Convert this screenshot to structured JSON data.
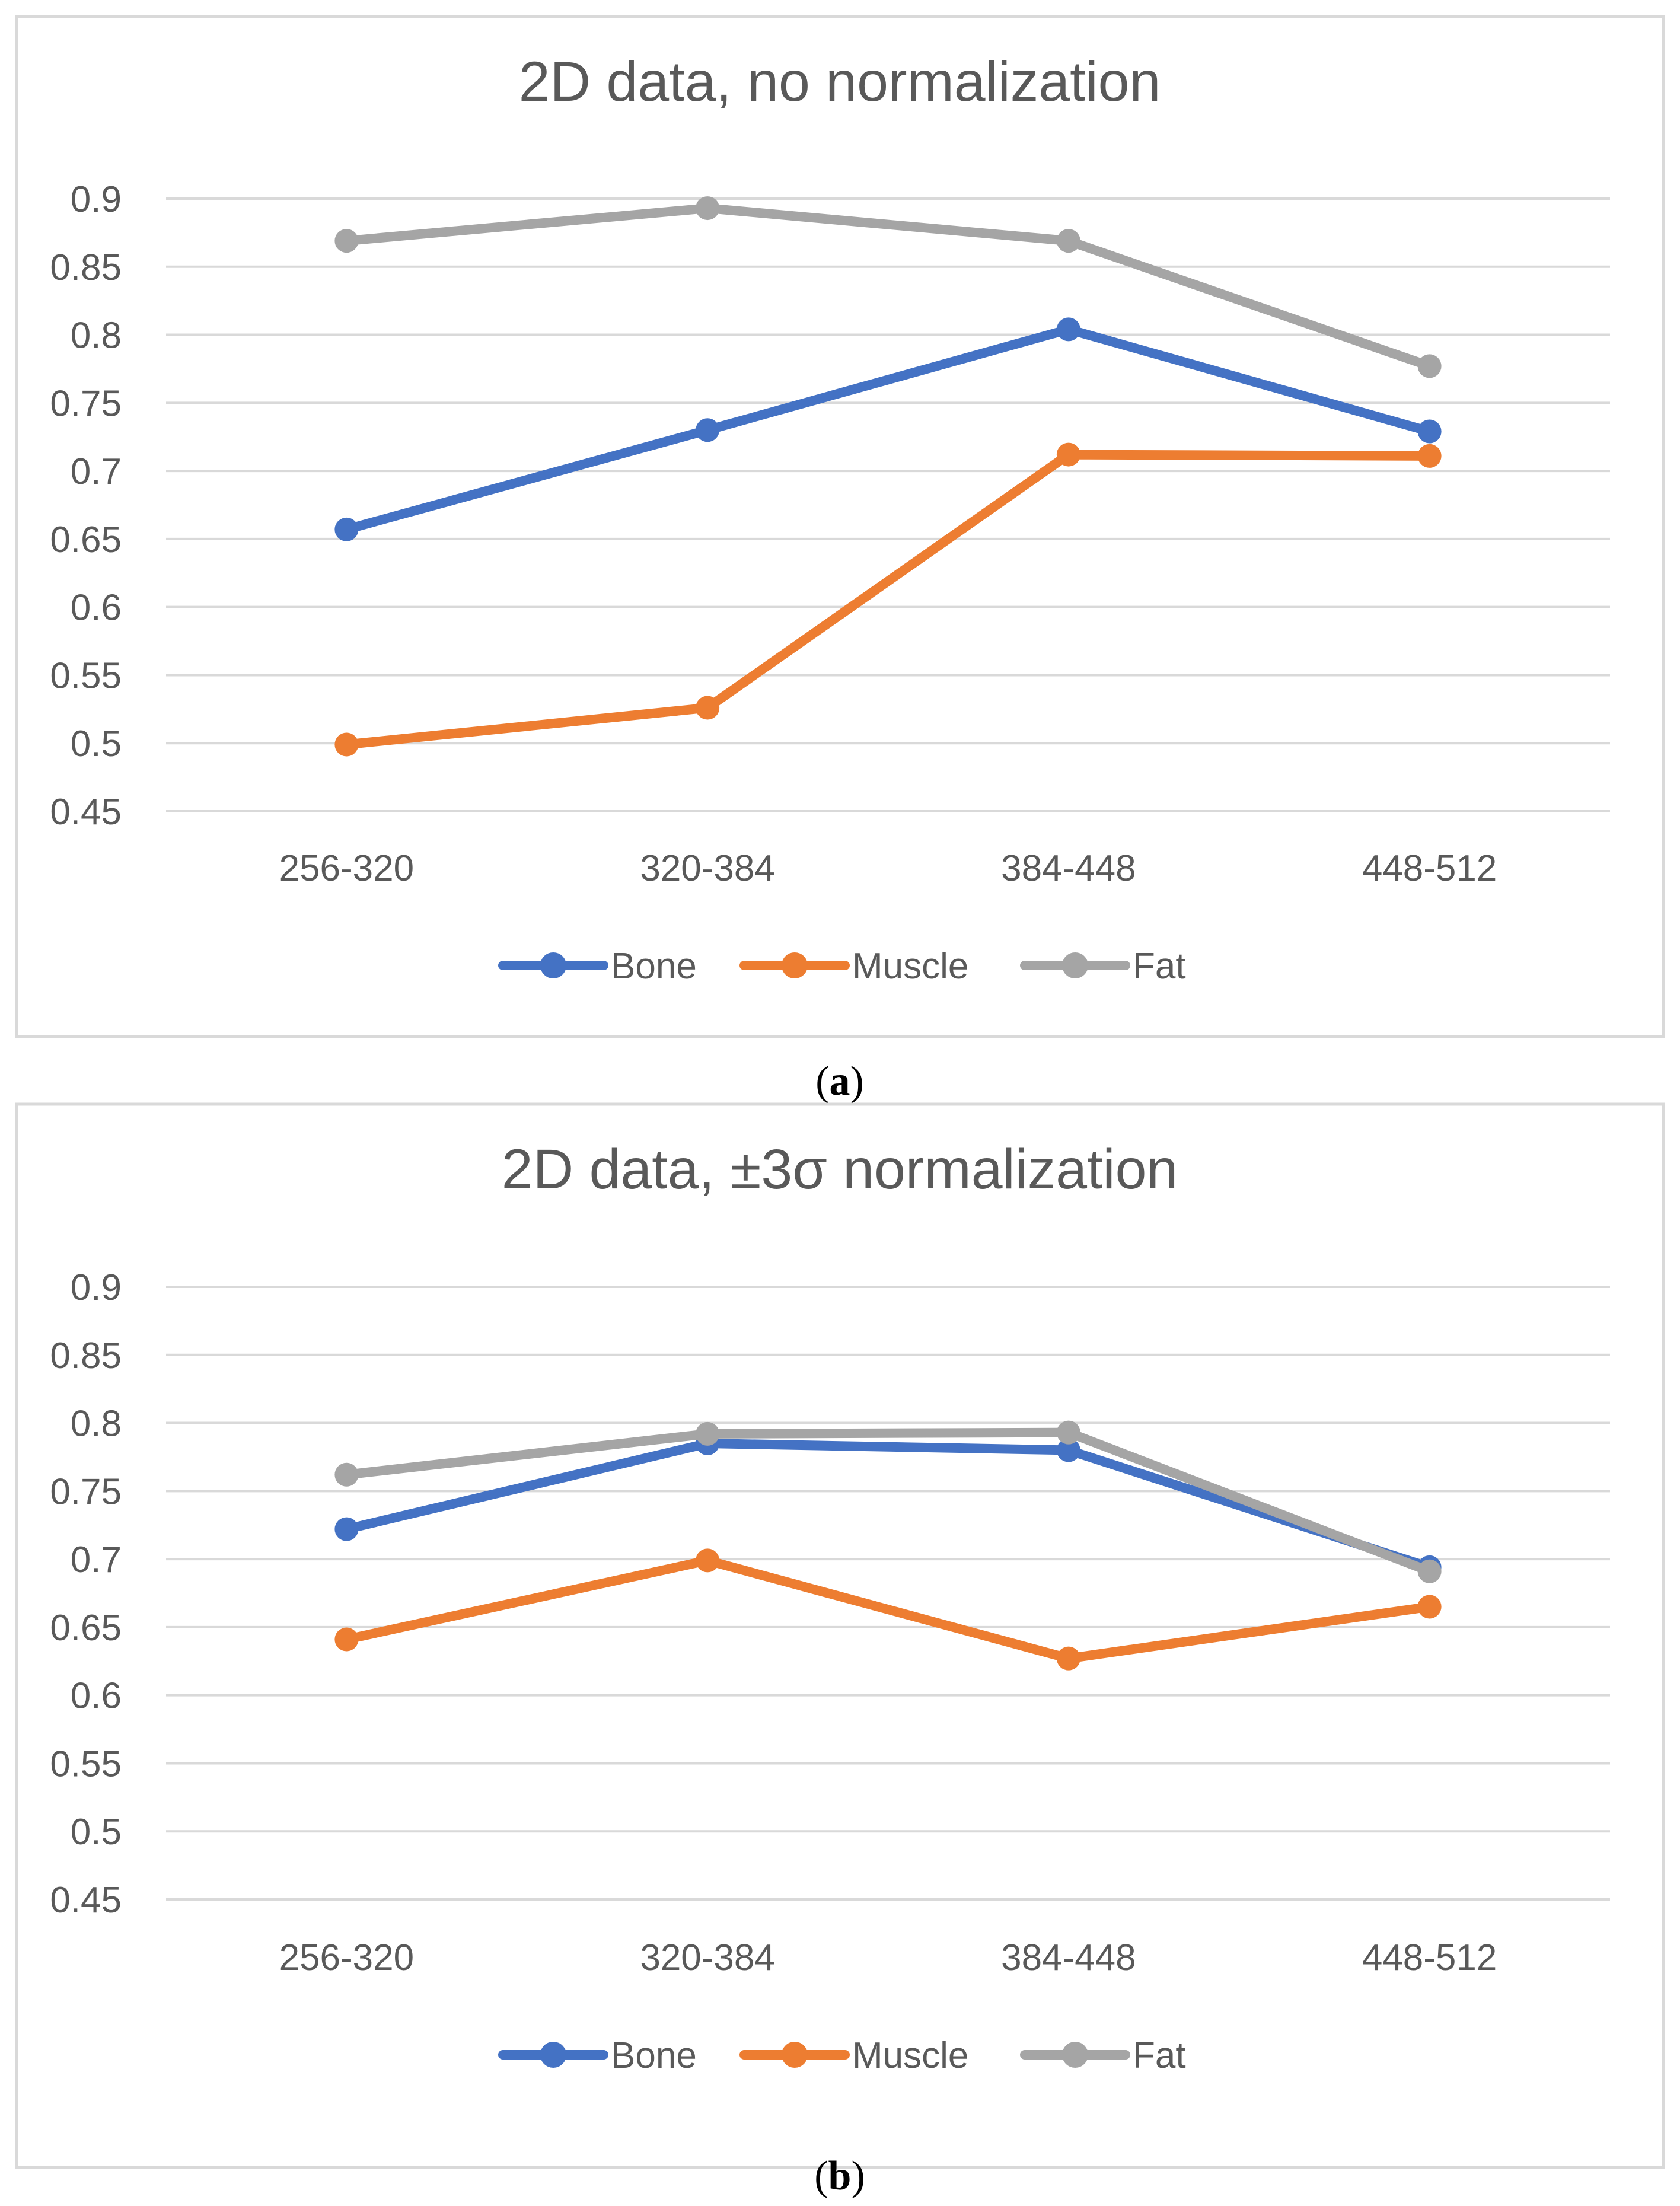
{
  "chart_data": [
    {
      "type": "line",
      "title": "2D data, no normalization",
      "caption": "a",
      "categories": [
        "256-320",
        "320-384",
        "384-448",
        "448-512"
      ],
      "ylim": [
        0.45,
        0.9
      ],
      "yticks": [
        "0.9",
        "0.85",
        "0.8",
        "0.75",
        "0.7",
        "0.65",
        "0.6",
        "0.55",
        "0.5",
        "0.45"
      ],
      "grid": true,
      "legend_position": "bottom",
      "series": [
        {
          "name": "Bone",
          "color": "#4472c4",
          "values": [
            0.657,
            0.73,
            0.804,
            0.729
          ]
        },
        {
          "name": "Muscle",
          "color": "#ed7d31",
          "values": [
            0.499,
            0.526,
            0.712,
            0.711
          ]
        },
        {
          "name": "Fat",
          "color": "#a5a5a5",
          "values": [
            0.869,
            0.893,
            0.869,
            0.777
          ]
        }
      ]
    },
    {
      "type": "line",
      "title": "2D data, ±3σ normalization",
      "caption": "b",
      "categories": [
        "256-320",
        "320-384",
        "384-448",
        "448-512"
      ],
      "ylim": [
        0.45,
        0.9
      ],
      "yticks": [
        "0.9",
        "0.85",
        "0.8",
        "0.75",
        "0.7",
        "0.65",
        "0.6",
        "0.55",
        "0.5",
        "0.45"
      ],
      "grid": true,
      "legend_position": "bottom",
      "series": [
        {
          "name": "Bone",
          "color": "#4472c4",
          "values": [
            0.722,
            0.785,
            0.78,
            0.694
          ]
        },
        {
          "name": "Muscle",
          "color": "#ed7d31",
          "values": [
            0.641,
            0.699,
            0.627,
            0.665
          ]
        },
        {
          "name": "Fat",
          "color": "#a5a5a5",
          "values": [
            0.762,
            0.792,
            0.793,
            0.691
          ]
        }
      ]
    }
  ]
}
